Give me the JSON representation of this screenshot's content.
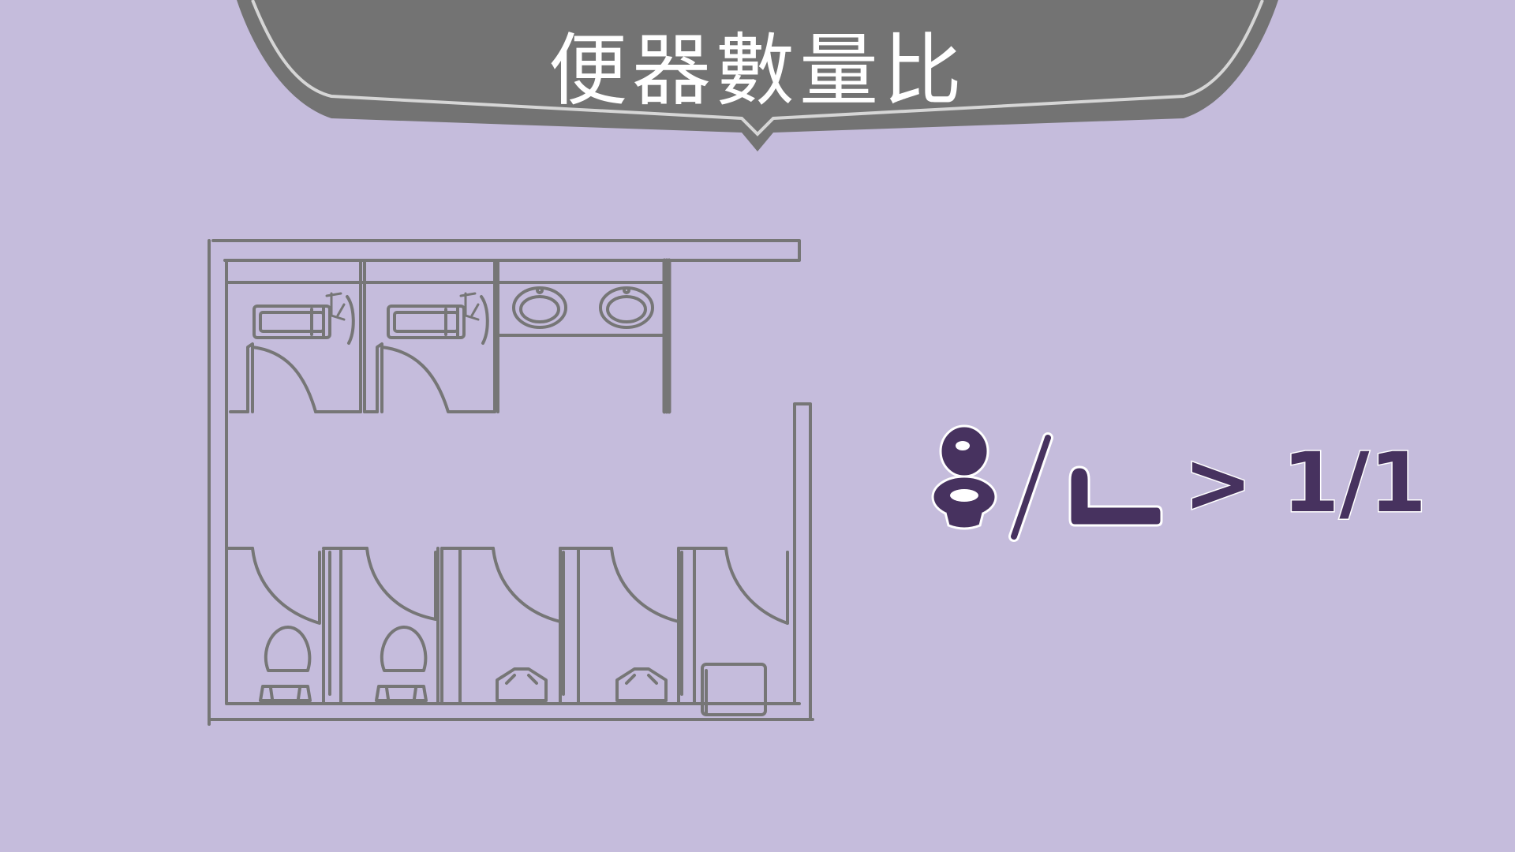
{
  "title": "便器數量比",
  "ratio": {
    "gt_symbol": ">",
    "value": "1/1"
  },
  "colors": {
    "background": "#c5bcdc",
    "banner": "#737373",
    "banner_border": "#d6d6d6",
    "line": "#767676",
    "accent": "#47325f"
  },
  "icons": [
    "toilet-icon",
    "urinal-icon",
    "bathtub-icon",
    "sink-icon",
    "squat-toilet-icon",
    "mop-sink-icon"
  ]
}
